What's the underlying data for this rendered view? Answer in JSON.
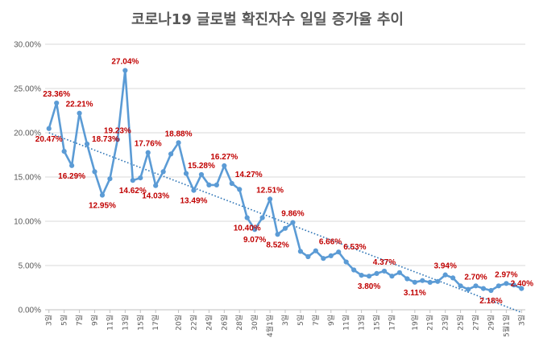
{
  "chart_data": {
    "type": "line",
    "title": "코로나19 글로벌 확진자수 일일 증가율 추이",
    "ylim": [
      0,
      30
    ],
    "y_ticks": [
      "0.00%",
      "5.00%",
      "10.00%",
      "15.00%",
      "20.00%",
      "25.00%",
      "30.00%"
    ],
    "grid": true,
    "trendline": {
      "style": "dotted",
      "start": 20.0,
      "end": -0.3
    },
    "x_labels": [
      "3일",
      "5일",
      "7일",
      "9일",
      "11일",
      "13일",
      "15일",
      "17일",
      "20일",
      "22일",
      "24일",
      "26일",
      "28일",
      "30일",
      "4월1일",
      "3일",
      "5일",
      "7일",
      "9일",
      "11일",
      "13일",
      "15일",
      "17일",
      "19일",
      "21일",
      "23일",
      "25일",
      "27일",
      "29일",
      "5월1일",
      "3일"
    ],
    "series": [
      {
        "values": [
          20.47,
          23.36,
          17.9,
          16.29,
          22.21,
          18.73,
          15.6,
          12.95,
          14.8,
          19.23,
          27.04,
          14.62,
          14.9,
          17.76,
          14.03,
          15.6,
          17.6,
          18.88,
          15.4,
          13.49,
          15.28,
          14.1,
          14.1,
          16.27,
          14.27,
          13.6,
          10.4,
          9.07,
          10.4,
          12.51,
          8.52,
          9.2,
          9.86,
          6.6,
          6.0,
          6.66,
          5.8,
          6.1,
          6.53,
          5.4,
          4.5,
          3.9,
          3.8,
          4.1,
          4.37,
          3.8,
          4.2,
          3.5,
          3.11,
          3.3,
          3.1,
          3.2,
          3.94,
          3.6,
          2.7,
          2.3,
          2.7,
          2.4,
          2.18,
          2.7,
          2.97,
          2.8,
          2.4
        ]
      }
    ],
    "data_labels": [
      {
        "index": 0,
        "text": "20.47%",
        "pos": "below"
      },
      {
        "index": 1,
        "text": "23.36%",
        "pos": "above"
      },
      {
        "index": 3,
        "text": "16.29%",
        "pos": "below"
      },
      {
        "index": 4,
        "text": "22.21%",
        "pos": "above"
      },
      {
        "index": 5,
        "text": "18.73%",
        "pos": "right"
      },
      {
        "index": 7,
        "text": "12.95%",
        "pos": "below"
      },
      {
        "index": 9,
        "text": "19.23%",
        "pos": "above"
      },
      {
        "index": 10,
        "text": "27.04%",
        "pos": "above"
      },
      {
        "index": 11,
        "text": "14.62%",
        "pos": "below"
      },
      {
        "index": 13,
        "text": "17.76%",
        "pos": "above"
      },
      {
        "index": 14,
        "text": "14.03%",
        "pos": "below"
      },
      {
        "index": 17,
        "text": "18.88%",
        "pos": "above"
      },
      {
        "index": 19,
        "text": "13.49%",
        "pos": "below"
      },
      {
        "index": 20,
        "text": "15.28%",
        "pos": "above"
      },
      {
        "index": 23,
        "text": "16.27%",
        "pos": "above"
      },
      {
        "index": 24,
        "text": "14.27%",
        "pos": "above-right"
      },
      {
        "index": 26,
        "text": "10.40%",
        "pos": "below"
      },
      {
        "index": 27,
        "text": "9.07%",
        "pos": "below"
      },
      {
        "index": 29,
        "text": "12.51%",
        "pos": "above"
      },
      {
        "index": 30,
        "text": "8.52%",
        "pos": "below"
      },
      {
        "index": 32,
        "text": "9.86%",
        "pos": "above"
      },
      {
        "index": 35,
        "text": "6.66%",
        "pos": "above-right"
      },
      {
        "index": 38,
        "text": "6.53%",
        "pos": "right"
      },
      {
        "index": 42,
        "text": "3.80%",
        "pos": "below"
      },
      {
        "index": 44,
        "text": "4.37%",
        "pos": "above"
      },
      {
        "index": 48,
        "text": "3.11%",
        "pos": "below"
      },
      {
        "index": 52,
        "text": "3.94%",
        "pos": "above"
      },
      {
        "index": 56,
        "text": "2.70%",
        "pos": "above"
      },
      {
        "index": 58,
        "text": "2.18%",
        "pos": "below"
      },
      {
        "index": 60,
        "text": "2.97%",
        "pos": "above"
      },
      {
        "index": 62,
        "text": "2.40%",
        "pos": "right"
      }
    ],
    "colors": {
      "line": "#5b9bd5",
      "trend": "#2e75b6",
      "label": "#c00000",
      "grid": "#d9d9d9",
      "text": "#595959"
    }
  }
}
